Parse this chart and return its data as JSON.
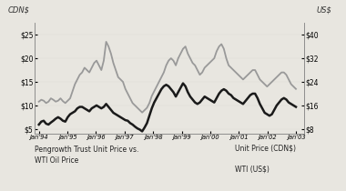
{
  "title": "",
  "left_ylabel": "CDN$",
  "right_ylabel": "US$",
  "left_yticks": [
    5,
    10,
    15,
    20,
    25
  ],
  "right_yticks": [
    8,
    16,
    24,
    32,
    40
  ],
  "left_ylim": [
    4.0,
    27.5
  ],
  "right_ylim": [
    6.4,
    44.0
  ],
  "xtick_labels": [
    "Jan'94",
    "Jan'95",
    "Jan'96",
    "Jan'97",
    "Jan'98",
    "Jan'99",
    "Jan'00",
    "Jan'01",
    "Jan'02",
    "Jan'03"
  ],
  "legend_text_left": "Pengrowth Trust Unit Price vs.\nWTI Oil Price",
  "legend_line1": "Unit Price (CDN$)",
  "legend_line2": "WTI (US$)",
  "color_unit": "#999999",
  "color_wti": "#1a1a1a",
  "background_color": "#e8e6e0",
  "unit_price_cdn": [
    10.8,
    11.2,
    11.0,
    10.5,
    10.8,
    11.5,
    11.2,
    10.8,
    11.0,
    11.5,
    10.9,
    10.5,
    11.0,
    11.5,
    13.0,
    14.5,
    15.5,
    16.5,
    17.0,
    18.0,
    17.5,
    17.0,
    18.0,
    19.0,
    19.5,
    18.5,
    17.5,
    19.5,
    23.5,
    22.5,
    21.0,
    19.0,
    17.5,
    16.0,
    15.5,
    15.0,
    13.5,
    12.5,
    11.5,
    10.5,
    10.0,
    9.5,
    9.0,
    8.5,
    9.0,
    9.5,
    10.5,
    12.0,
    13.0,
    14.0,
    15.0,
    16.0,
    17.0,
    18.5,
    19.5,
    20.0,
    19.5,
    18.5,
    20.0,
    21.0,
    22.0,
    22.5,
    21.0,
    20.0,
    19.0,
    18.5,
    17.5,
    16.5,
    17.0,
    18.0,
    18.5,
    19.0,
    19.5,
    20.0,
    21.5,
    22.5,
    23.0,
    22.0,
    20.0,
    18.5,
    18.0,
    17.5,
    17.0,
    16.5,
    16.0,
    15.5,
    16.0,
    16.5,
    17.0,
    17.5,
    17.5,
    16.5,
    15.5,
    15.0,
    14.5,
    14.0,
    14.5,
    15.0,
    15.5,
    16.0,
    16.5,
    17.0,
    17.0,
    16.5,
    15.5,
    14.5,
    14.0,
    13.5
  ],
  "wti_usd": [
    9.5,
    10.5,
    10.8,
    9.8,
    9.5,
    10.2,
    10.8,
    11.5,
    12.0,
    11.5,
    10.8,
    10.5,
    12.0,
    13.0,
    13.5,
    14.0,
    15.0,
    15.5,
    15.5,
    15.0,
    14.5,
    14.0,
    15.0,
    15.5,
    16.0,
    15.5,
    15.0,
    15.5,
    16.5,
    15.5,
    14.5,
    13.5,
    13.0,
    12.5,
    12.0,
    11.5,
    11.0,
    10.8,
    10.0,
    9.5,
    8.8,
    8.2,
    7.8,
    7.2,
    8.5,
    10.0,
    12.5,
    15.0,
    17.0,
    18.5,
    20.0,
    21.5,
    22.5,
    23.0,
    22.5,
    21.5,
    20.5,
    19.0,
    20.5,
    22.0,
    23.5,
    22.5,
    20.5,
    19.0,
    18.0,
    17.0,
    16.5,
    17.0,
    18.0,
    19.0,
    18.5,
    18.0,
    17.5,
    17.0,
    18.5,
    20.0,
    21.0,
    21.5,
    21.0,
    20.0,
    19.5,
    18.5,
    18.0,
    17.5,
    17.0,
    16.5,
    17.5,
    18.5,
    19.5,
    20.0,
    20.0,
    18.5,
    16.5,
    15.0,
    13.5,
    13.0,
    12.5,
    13.0,
    14.5,
    16.0,
    17.0,
    18.0,
    18.5,
    18.0,
    17.0,
    16.5,
    16.0,
    15.5
  ]
}
